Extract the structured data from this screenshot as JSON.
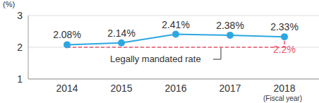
{
  "chart_data": {
    "type": "line",
    "categories": [
      "2014",
      "2015",
      "2016",
      "2017",
      "2018"
    ],
    "series": [
      {
        "name": "Legally mandated rate",
        "color": "#e9546b",
        "line_style": "dashed",
        "values": [
          2,
          2,
          2,
          2,
          2.2
        ],
        "value_labels": [
          null,
          null,
          null,
          null,
          "2.2%"
        ]
      },
      {
        "color": "#2ea7e0",
        "marker": "circle",
        "values": [
          2.08,
          2.14,
          2.41,
          2.38,
          2.33
        ],
        "value_labels": [
          "2.08%",
          "2.14%",
          "2.41%",
          "2.38%",
          "2.33%"
        ]
      }
    ],
    "ylim": [
      1,
      3
    ],
    "yticks": [
      1,
      2,
      3
    ],
    "ylabel": "(%)",
    "xlabel": "(Fiscal year)",
    "grid": true,
    "data_labels": true
  }
}
